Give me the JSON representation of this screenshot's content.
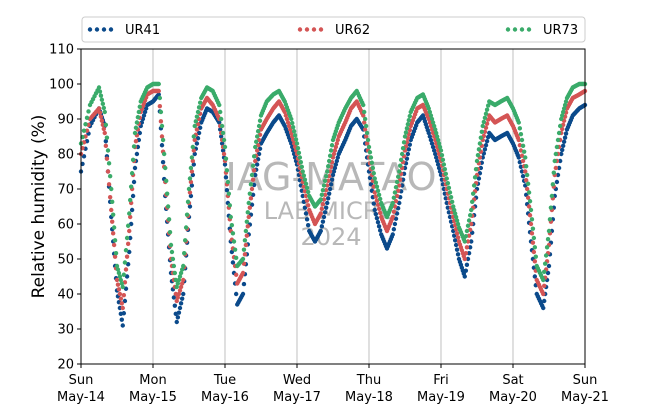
{
  "chart_data": {
    "type": "scatter",
    "ylabel": "Relative humidity (%)",
    "ylim": [
      20,
      110
    ],
    "yticks": [
      20,
      30,
      40,
      50,
      60,
      70,
      80,
      90,
      100,
      110
    ],
    "xlim": [
      "2024-05-14",
      "2024-05-21"
    ],
    "xticks": [
      {
        "day": "Sun",
        "date": "May-14"
      },
      {
        "day": "Mon",
        "date": "May-15"
      },
      {
        "day": "Tue",
        "date": "May-16"
      },
      {
        "day": "Wed",
        "date": "May-17"
      },
      {
        "day": "Thu",
        "date": "May-18"
      },
      {
        "day": "Fri",
        "date": "May-19"
      },
      {
        "day": "Sat",
        "date": "May-20"
      },
      {
        "day": "Sun",
        "date": "May-21"
      }
    ],
    "grid": "vertical",
    "legend_position": "top",
    "series": [
      {
        "name": "UR41",
        "color": "#0b4a8b",
        "points": [
          [
            0.0,
            75
          ],
          [
            0.125,
            88
          ],
          [
            0.25,
            93
          ],
          [
            0.33,
            88
          ],
          [
            0.42,
            62
          ],
          [
            0.5,
            41
          ],
          [
            0.58,
            31
          ],
          [
            0.67,
            52
          ],
          [
            0.75,
            76
          ],
          [
            0.83,
            88
          ],
          [
            0.92,
            94
          ],
          [
            1.0,
            95
          ],
          [
            1.08,
            97
          ],
          [
            1.17,
            68
          ],
          [
            1.25,
            46
          ],
          [
            1.33,
            32
          ],
          [
            1.42,
            40
          ],
          [
            1.5,
            62
          ],
          [
            1.58,
            80
          ],
          [
            1.67,
            89
          ],
          [
            1.75,
            93
          ],
          [
            1.83,
            92
          ],
          [
            1.92,
            89
          ],
          [
            2.0,
            77
          ],
          [
            2.08,
            55
          ],
          [
            2.17,
            37
          ],
          [
            2.25,
            40
          ],
          [
            2.33,
            57
          ],
          [
            2.42,
            74
          ],
          [
            2.5,
            83
          ],
          [
            2.58,
            86
          ],
          [
            2.67,
            89
          ],
          [
            2.75,
            91
          ],
          [
            2.83,
            88
          ],
          [
            2.92,
            83
          ],
          [
            3.0,
            77
          ],
          [
            3.08,
            68
          ],
          [
            3.17,
            58
          ],
          [
            3.25,
            55
          ],
          [
            3.33,
            58
          ],
          [
            3.42,
            66
          ],
          [
            3.5,
            74
          ],
          [
            3.58,
            80
          ],
          [
            3.67,
            84
          ],
          [
            3.75,
            88
          ],
          [
            3.83,
            90
          ],
          [
            3.92,
            87
          ],
          [
            4.0,
            75
          ],
          [
            4.08,
            64
          ],
          [
            4.17,
            57
          ],
          [
            4.25,
            53
          ],
          [
            4.33,
            57
          ],
          [
            4.42,
            66
          ],
          [
            4.5,
            76
          ],
          [
            4.58,
            84
          ],
          [
            4.67,
            89
          ],
          [
            4.75,
            91
          ],
          [
            4.83,
            86
          ],
          [
            4.92,
            80
          ],
          [
            5.0,
            74
          ],
          [
            5.08,
            66
          ],
          [
            5.17,
            58
          ],
          [
            5.25,
            50
          ],
          [
            5.33,
            45
          ],
          [
            5.42,
            55
          ],
          [
            5.5,
            70
          ],
          [
            5.58,
            79
          ],
          [
            5.67,
            86
          ],
          [
            5.75,
            84
          ],
          [
            5.83,
            85
          ],
          [
            5.92,
            86
          ],
          [
            6.0,
            83
          ],
          [
            6.08,
            79
          ],
          [
            6.17,
            71
          ],
          [
            6.25,
            55
          ],
          [
            6.33,
            40
          ],
          [
            6.42,
            36
          ],
          [
            6.5,
            48
          ],
          [
            6.58,
            68
          ],
          [
            6.67,
            80
          ],
          [
            6.75,
            87
          ],
          [
            6.83,
            91
          ],
          [
            6.92,
            93
          ],
          [
            7.0,
            94
          ]
        ]
      },
      {
        "name": "UR62",
        "color": "#d45555",
        "points": [
          [
            0.0,
            80
          ],
          [
            0.125,
            90
          ],
          [
            0.25,
            93
          ],
          [
            0.33,
            86
          ],
          [
            0.42,
            64
          ],
          [
            0.5,
            44
          ],
          [
            0.58,
            36
          ],
          [
            0.67,
            58
          ],
          [
            0.75,
            82
          ],
          [
            0.83,
            92
          ],
          [
            0.92,
            97
          ],
          [
            1.0,
            98
          ],
          [
            1.08,
            98
          ],
          [
            1.17,
            72
          ],
          [
            1.25,
            50
          ],
          [
            1.33,
            38
          ],
          [
            1.42,
            44
          ],
          [
            1.5,
            66
          ],
          [
            1.58,
            84
          ],
          [
            1.67,
            93
          ],
          [
            1.75,
            96
          ],
          [
            1.83,
            94
          ],
          [
            1.92,
            90
          ],
          [
            2.0,
            78
          ],
          [
            2.08,
            58
          ],
          [
            2.17,
            43
          ],
          [
            2.25,
            46
          ],
          [
            2.33,
            62
          ],
          [
            2.42,
            78
          ],
          [
            2.5,
            87
          ],
          [
            2.58,
            90
          ],
          [
            2.67,
            93
          ],
          [
            2.75,
            95
          ],
          [
            2.83,
            92
          ],
          [
            2.92,
            86
          ],
          [
            3.0,
            80
          ],
          [
            3.08,
            72
          ],
          [
            3.17,
            64
          ],
          [
            3.25,
            60
          ],
          [
            3.33,
            63
          ],
          [
            3.42,
            71
          ],
          [
            3.5,
            79
          ],
          [
            3.58,
            85
          ],
          [
            3.67,
            89
          ],
          [
            3.75,
            93
          ],
          [
            3.83,
            95
          ],
          [
            3.92,
            91
          ],
          [
            4.0,
            79
          ],
          [
            4.08,
            69
          ],
          [
            4.17,
            62
          ],
          [
            4.25,
            58
          ],
          [
            4.33,
            62
          ],
          [
            4.42,
            71
          ],
          [
            4.5,
            81
          ],
          [
            4.58,
            88
          ],
          [
            4.67,
            93
          ],
          [
            4.75,
            94
          ],
          [
            4.83,
            90
          ],
          [
            4.92,
            84
          ],
          [
            5.0,
            78
          ],
          [
            5.08,
            70
          ],
          [
            5.17,
            62
          ],
          [
            5.25,
            55
          ],
          [
            5.33,
            50
          ],
          [
            5.42,
            60
          ],
          [
            5.5,
            74
          ],
          [
            5.58,
            84
          ],
          [
            5.67,
            91
          ],
          [
            5.75,
            89
          ],
          [
            5.83,
            90
          ],
          [
            5.92,
            91
          ],
          [
            6.0,
            88
          ],
          [
            6.08,
            84
          ],
          [
            6.17,
            75
          ],
          [
            6.25,
            60
          ],
          [
            6.33,
            44
          ],
          [
            6.42,
            40
          ],
          [
            6.5,
            54
          ],
          [
            6.58,
            74
          ],
          [
            6.67,
            86
          ],
          [
            6.75,
            93
          ],
          [
            6.83,
            96
          ],
          [
            6.92,
            97
          ],
          [
            7.0,
            98
          ]
        ]
      },
      {
        "name": "UR73",
        "color": "#3aab6a",
        "points": [
          [
            0.0,
            83
          ],
          [
            0.125,
            94
          ],
          [
            0.25,
            99
          ],
          [
            0.33,
            92
          ],
          [
            0.42,
            70
          ],
          [
            0.5,
            48
          ],
          [
            0.58,
            42
          ],
          [
            0.67,
            63
          ],
          [
            0.75,
            86
          ],
          [
            0.83,
            95
          ],
          [
            0.92,
            99
          ],
          [
            1.0,
            100
          ],
          [
            1.08,
            100
          ],
          [
            1.17,
            76
          ],
          [
            1.25,
            54
          ],
          [
            1.33,
            42
          ],
          [
            1.42,
            48
          ],
          [
            1.5,
            70
          ],
          [
            1.58,
            88
          ],
          [
            1.67,
            96
          ],
          [
            1.75,
            99
          ],
          [
            1.83,
            98
          ],
          [
            1.92,
            94
          ],
          [
            2.0,
            82
          ],
          [
            2.08,
            62
          ],
          [
            2.17,
            48
          ],
          [
            2.25,
            50
          ],
          [
            2.33,
            66
          ],
          [
            2.42,
            82
          ],
          [
            2.5,
            91
          ],
          [
            2.58,
            95
          ],
          [
            2.67,
            97
          ],
          [
            2.75,
            98
          ],
          [
            2.83,
            95
          ],
          [
            2.92,
            90
          ],
          [
            3.0,
            83
          ],
          [
            3.08,
            75
          ],
          [
            3.17,
            68
          ],
          [
            3.25,
            65
          ],
          [
            3.33,
            67
          ],
          [
            3.42,
            75
          ],
          [
            3.5,
            84
          ],
          [
            3.58,
            89
          ],
          [
            3.67,
            93
          ],
          [
            3.75,
            96
          ],
          [
            3.83,
            98
          ],
          [
            3.92,
            94
          ],
          [
            4.0,
            82
          ],
          [
            4.08,
            73
          ],
          [
            4.17,
            66
          ],
          [
            4.25,
            62
          ],
          [
            4.33,
            66
          ],
          [
            4.42,
            75
          ],
          [
            4.5,
            85
          ],
          [
            4.58,
            92
          ],
          [
            4.67,
            96
          ],
          [
            4.75,
            97
          ],
          [
            4.83,
            93
          ],
          [
            4.92,
            87
          ],
          [
            5.0,
            81
          ],
          [
            5.08,
            73
          ],
          [
            5.17,
            65
          ],
          [
            5.25,
            59
          ],
          [
            5.33,
            55
          ],
          [
            5.42,
            64
          ],
          [
            5.5,
            78
          ],
          [
            5.58,
            88
          ],
          [
            5.67,
            95
          ],
          [
            5.75,
            94
          ],
          [
            5.83,
            95
          ],
          [
            5.92,
            96
          ],
          [
            6.0,
            93
          ],
          [
            6.08,
            89
          ],
          [
            6.17,
            79
          ],
          [
            6.25,
            64
          ],
          [
            6.33,
            48
          ],
          [
            6.42,
            44
          ],
          [
            6.5,
            58
          ],
          [
            6.58,
            78
          ],
          [
            6.67,
            90
          ],
          [
            6.75,
            96
          ],
          [
            6.83,
            99
          ],
          [
            6.92,
            100
          ],
          [
            7.0,
            100
          ]
        ]
      }
    ],
    "watermark": [
      "IAG-MATAO",
      "LAB MICRO",
      "2024"
    ]
  }
}
